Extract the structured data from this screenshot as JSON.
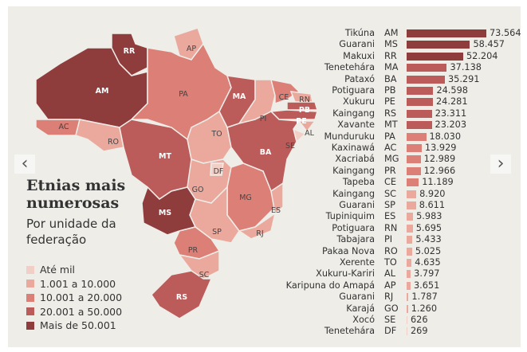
{
  "title_bold": "Etnias mais numerosas",
  "subtitle": "Por unidade da federação",
  "colors": {
    "c1": "#f2cfc6",
    "c2": "#eba99e",
    "c3": "#db7f77",
    "c4": "#bb5c5a",
    "c5": "#8f3d3c",
    "background": "#eeede8"
  },
  "legend": [
    {
      "label": "Até mil",
      "class": "c1"
    },
    {
      "label": "1.001 a 10.000",
      "class": "c2"
    },
    {
      "label": "10.001 a 20.000",
      "class": "c3"
    },
    {
      "label": "20.001 a 50.000",
      "class": "c4"
    },
    {
      "label": "Mais de 50.001",
      "class": "c5"
    }
  ],
  "nav": {
    "prev_icon": "chevron-left-icon",
    "next_icon": "chevron-right-icon"
  },
  "chart_data": {
    "type": "bar",
    "orientation": "horizontal",
    "title": "Etnias mais numerosas",
    "subtitle": "Por unidade da federação",
    "rows": [
      {
        "ethnicity": "Tikúna",
        "uf": "AM",
        "value": 73564,
        "label": "73.564"
      },
      {
        "ethnicity": "Guarani",
        "uf": "MS",
        "value": 58457,
        "label": "58.457"
      },
      {
        "ethnicity": "Makuxi",
        "uf": "RR",
        "value": 52204,
        "label": "52.204"
      },
      {
        "ethnicity": "Tenetehára",
        "uf": "MA",
        "value": 37138,
        "label": "37.138"
      },
      {
        "ethnicity": "Pataxó",
        "uf": "BA",
        "value": 35291,
        "label": "35.291"
      },
      {
        "ethnicity": "Potiguara",
        "uf": "PB",
        "value": 24598,
        "label": "24.598"
      },
      {
        "ethnicity": "Xukuru",
        "uf": "PE",
        "value": 24281,
        "label": "24.281"
      },
      {
        "ethnicity": "Kaingang",
        "uf": "RS",
        "value": 23311,
        "label": "23.311"
      },
      {
        "ethnicity": "Xavante",
        "uf": "MT",
        "value": 23203,
        "label": "23.203"
      },
      {
        "ethnicity": "Munduruku",
        "uf": "PA",
        "value": 18030,
        "label": "18.030"
      },
      {
        "ethnicity": "Kaxinawá",
        "uf": "AC",
        "value": 13929,
        "label": "13.929"
      },
      {
        "ethnicity": "Xacriabá",
        "uf": "MG",
        "value": 12989,
        "label": "12.989"
      },
      {
        "ethnicity": "Kaingang",
        "uf": "PR",
        "value": 12966,
        "label": "12.966"
      },
      {
        "ethnicity": "Tapeba",
        "uf": "CE",
        "value": 11189,
        "label": "11.189"
      },
      {
        "ethnicity": "Kaingang",
        "uf": "SC",
        "value": 8920,
        "label": "8.920"
      },
      {
        "ethnicity": "Guarani",
        "uf": "SP",
        "value": 8611,
        "label": "8.611"
      },
      {
        "ethnicity": "Tupiniquim",
        "uf": "ES",
        "value": 5983,
        "label": "5.983"
      },
      {
        "ethnicity": "Potiguara",
        "uf": "RN",
        "value": 5695,
        "label": "5.695"
      },
      {
        "ethnicity": "Tabajara",
        "uf": "PI",
        "value": 5433,
        "label": "5.433"
      },
      {
        "ethnicity": "Pakaa Nova",
        "uf": "RO",
        "value": 5025,
        "label": "5.025"
      },
      {
        "ethnicity": "Xerente",
        "uf": "TO",
        "value": 4635,
        "label": "4.635"
      },
      {
        "ethnicity": "Xukuru-Kariri",
        "uf": "AL",
        "value": 3797,
        "label": "3.797"
      },
      {
        "ethnicity": "Karipuna do Amapá",
        "uf": "AP",
        "value": 3651,
        "label": "3.651"
      },
      {
        "ethnicity": "Guarani",
        "uf": "RJ",
        "value": 1787,
        "label": "1.787"
      },
      {
        "ethnicity": "Karajá",
        "uf": "GO",
        "value": 1260,
        "label": "1.260"
      },
      {
        "ethnicity": "Xocó",
        "uf": "SE",
        "value": 626,
        "label": "626"
      },
      {
        "ethnicity": "Tenetehára",
        "uf": "DF",
        "value": 269,
        "label": "269"
      }
    ]
  }
}
